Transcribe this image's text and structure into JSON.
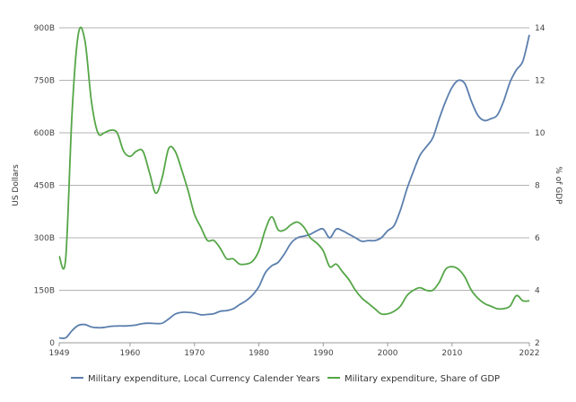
{
  "chart_data": {
    "type": "line",
    "x_ticks": [
      1949,
      1960,
      1970,
      1980,
      1990,
      2000,
      2010,
      2022
    ],
    "xlim": [
      1949,
      2022
    ],
    "left_axis": {
      "label": "US Dollars",
      "ylim": [
        0,
        900000000000
      ],
      "ticks": [
        0,
        150000000000,
        300000000000,
        450000000000,
        600000000000,
        750000000000,
        900000000000
      ],
      "tick_labels": [
        "0",
        "150B",
        "300B",
        "450B",
        "600B",
        "750B",
        "900B"
      ]
    },
    "right_axis": {
      "label": "% of GDP",
      "ylim": [
        2,
        14
      ],
      "ticks": [
        2,
        4,
        6,
        8,
        10,
        12,
        14
      ],
      "tick_labels": [
        "2",
        "4",
        "6",
        "8",
        "10",
        "12",
        "14"
      ]
    },
    "grid": true,
    "legend_position": "bottom",
    "series": [
      {
        "name": "Military expenditure, Local Currency Calender Years",
        "axis": "left",
        "color": "#5b7fad",
        "x": [
          1949,
          1950,
          1951,
          1952,
          1953,
          1954,
          1955,
          1956,
          1957,
          1958,
          1959,
          1960,
          1961,
          1962,
          1963,
          1964,
          1965,
          1966,
          1967,
          1968,
          1969,
          1970,
          1971,
          1972,
          1973,
          1974,
          1975,
          1976,
          1977,
          1978,
          1979,
          1980,
          1981,
          1982,
          1983,
          1984,
          1985,
          1986,
          1987,
          1988,
          1989,
          1990,
          1991,
          1992,
          1993,
          1994,
          1995,
          1996,
          1997,
          1998,
          1999,
          2000,
          2001,
          2002,
          2003,
          2004,
          2005,
          2006,
          2007,
          2008,
          2009,
          2010,
          2011,
          2012,
          2013,
          2014,
          2015,
          2016,
          2017,
          2018,
          2019,
          2020,
          2021,
          2022
        ],
        "values": [
          14000000000.0,
          14000000000.0,
          35000000000.0,
          50000000000.0,
          52000000000.0,
          45000000000.0,
          43000000000.0,
          44000000000.0,
          47000000000.0,
          48000000000.0,
          48000000000.0,
          49000000000.0,
          51000000000.0,
          55000000000.0,
          56000000000.0,
          55000000000.0,
          56000000000.0,
          68000000000.0,
          82000000000.0,
          87000000000.0,
          87000000000.0,
          85000000000.0,
          80000000000.0,
          81000000000.0,
          83000000000.0,
          90000000000.0,
          92000000000.0,
          97000000000.0,
          109000000000.0,
          120000000000.0,
          136000000000.0,
          160000000000.0,
          200000000000.0,
          220000000000.0,
          230000000000.0,
          255000000000.0,
          285000000000.0,
          300000000000.0,
          305000000000.0,
          310000000000.0,
          320000000000.0,
          325000000000.0,
          300000000000.0,
          325000000000.0,
          320000000000.0,
          310000000000.0,
          300000000000.0,
          290000000000.0,
          292000000000.0,
          292000000000.0,
          300000000000.0,
          320000000000.0,
          335000000000.0,
          380000000000.0,
          440000000000.0,
          490000000000.0,
          535000000000.0,
          560000000000.0,
          585000000000.0,
          640000000000.0,
          690000000000.0,
          730000000000.0,
          750000000000.0,
          740000000000.0,
          690000000000.0,
          650000000000.0,
          635000000000.0,
          640000000000.0,
          650000000000.0,
          690000000000.0,
          745000000000.0,
          780000000000.0,
          805000000000.0,
          880000000000.0
        ]
      },
      {
        "name": "Military expenditure, Share of GDP",
        "axis": "right",
        "color": "#55a647",
        "x": [
          1949,
          1950,
          1951,
          1952,
          1953,
          1954,
          1955,
          1956,
          1957,
          1958,
          1959,
          1960,
          1961,
          1962,
          1963,
          1964,
          1965,
          1966,
          1967,
          1968,
          1969,
          1970,
          1971,
          1972,
          1973,
          1974,
          1975,
          1976,
          1977,
          1978,
          1979,
          1980,
          1981,
          1982,
          1983,
          1984,
          1985,
          1986,
          1987,
          1988,
          1989,
          1990,
          1991,
          1992,
          1993,
          1994,
          1995,
          1996,
          1997,
          1998,
          1999,
          2000,
          2001,
          2002,
          2003,
          2004,
          2005,
          2006,
          2007,
          2008,
          2009,
          2010,
          2011,
          2012,
          2013,
          2014,
          2015,
          2016,
          2017,
          2018,
          2019,
          2020,
          2021,
          2022
        ],
        "values": [
          5.3,
          5.2,
          10.8,
          13.8,
          13.5,
          11.2,
          10.0,
          10.0,
          10.1,
          10.0,
          9.3,
          9.1,
          9.3,
          9.3,
          8.5,
          7.7,
          8.3,
          9.4,
          9.3,
          8.6,
          7.8,
          6.9,
          6.4,
          5.9,
          5.9,
          5.6,
          5.2,
          5.2,
          5.0,
          5.0,
          5.1,
          5.5,
          6.3,
          6.8,
          6.3,
          6.3,
          6.5,
          6.6,
          6.4,
          6.0,
          5.8,
          5.5,
          4.9,
          5.0,
          4.7,
          4.4,
          4.0,
          3.7,
          3.5,
          3.3,
          3.1,
          3.1,
          3.2,
          3.4,
          3.8,
          4.0,
          4.1,
          4.0,
          4.0,
          4.3,
          4.8,
          4.9,
          4.8,
          4.5,
          4.0,
          3.7,
          3.5,
          3.4,
          3.3,
          3.3,
          3.4,
          3.8,
          3.6,
          3.6
        ]
      }
    ]
  }
}
